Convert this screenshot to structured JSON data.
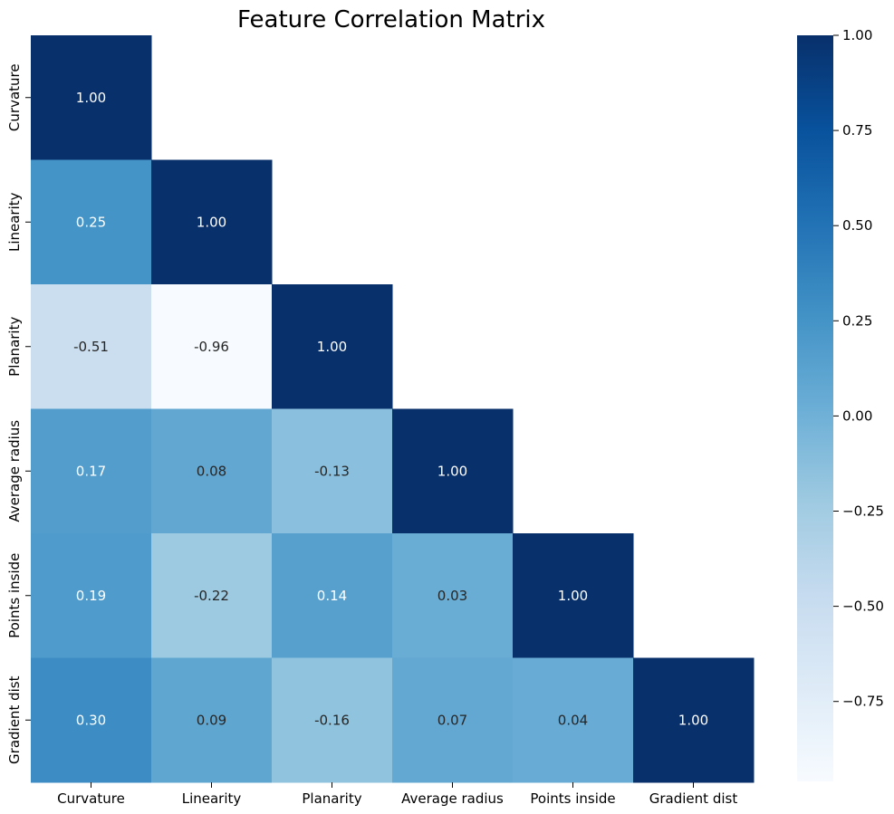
{
  "chart_data": {
    "type": "heatmap",
    "title": "Feature Correlation Matrix",
    "rows": [
      "Curvature",
      "Linearity",
      "Planarity",
      "Average radius",
      "Points inside",
      "Gradient dist"
    ],
    "columns": [
      "Curvature",
      "Linearity",
      "Planarity",
      "Average radius",
      "Points inside",
      "Gradient dist"
    ],
    "mask": "upper-triangle",
    "values": [
      [
        1.0,
        null,
        null,
        null,
        null,
        null
      ],
      [
        0.25,
        1.0,
        null,
        null,
        null,
        null
      ],
      [
        -0.51,
        -0.96,
        1.0,
        null,
        null,
        null
      ],
      [
        0.17,
        0.08,
        -0.13,
        1.0,
        null,
        null
      ],
      [
        0.19,
        -0.22,
        0.14,
        0.03,
        1.0,
        null
      ],
      [
        0.3,
        0.09,
        -0.16,
        0.07,
        0.04,
        1.0
      ]
    ],
    "value_labels": [
      [
        "1.00",
        "",
        "",
        "",
        "",
        ""
      ],
      [
        "0.25",
        "1.00",
        "",
        "",
        "",
        ""
      ],
      [
        "-0.51",
        "-0.96",
        "1.00",
        "",
        "",
        ""
      ],
      [
        "0.17",
        "0.08",
        "-0.13",
        "1.00",
        "",
        ""
      ],
      [
        "0.19",
        "-0.22",
        "0.14",
        "0.03",
        "1.00",
        ""
      ],
      [
        "0.30",
        "0.09",
        "-0.16",
        "0.07",
        "0.04",
        "1.00"
      ]
    ],
    "colormap": "Blues",
    "colorbar": {
      "range": [
        -0.96,
        1.0
      ],
      "ticks": [
        1.0,
        0.75,
        0.5,
        0.25,
        0.0,
        -0.25,
        -0.5,
        -0.75
      ],
      "tick_labels": [
        "1.00",
        "0.75",
        "0.50",
        "0.25",
        "0.00",
        "−0.25",
        "−0.50",
        "−0.75"
      ]
    },
    "grid": false,
    "legend": "colorbar-right"
  }
}
